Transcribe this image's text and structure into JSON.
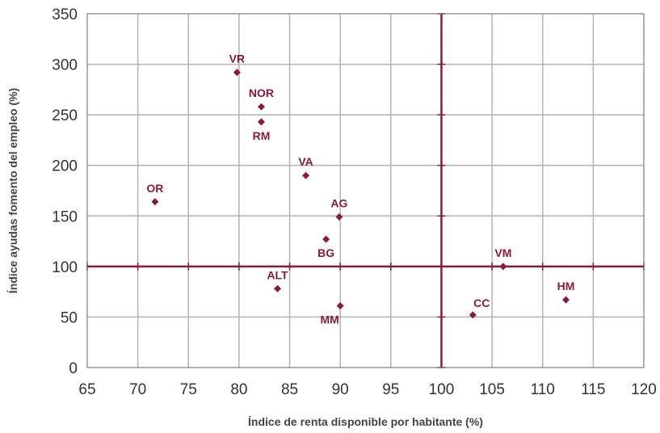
{
  "chart_data": {
    "type": "scatter",
    "xlabel": "Índice de renta disponible por habitante (%)",
    "ylabel": "Índice ayudas fomento del empleo (%)",
    "xlim": [
      65,
      120
    ],
    "ylim": [
      0,
      350
    ],
    "xticks": [
      65,
      70,
      75,
      80,
      85,
      90,
      95,
      100,
      105,
      110,
      115,
      120
    ],
    "yticks": [
      0,
      50,
      100,
      150,
      200,
      250,
      300,
      350
    ],
    "grid": true,
    "reference_lines": {
      "x": 100,
      "y": 100
    },
    "colors": {
      "marker": "#8b1a3a",
      "reference": "#8b1a3a",
      "grid": "#b3b3b3"
    },
    "points": [
      {
        "label": "VR",
        "x": 79.8,
        "y": 292,
        "label_pos": "above"
      },
      {
        "label": "NOR",
        "x": 82.2,
        "y": 258,
        "label_pos": "above"
      },
      {
        "label": "RM",
        "x": 82.2,
        "y": 243,
        "label_pos": "below"
      },
      {
        "label": "VA",
        "x": 86.6,
        "y": 190,
        "label_pos": "above"
      },
      {
        "label": "OR",
        "x": 71.7,
        "y": 164,
        "label_pos": "above"
      },
      {
        "label": "AG",
        "x": 89.9,
        "y": 149,
        "label_pos": "above"
      },
      {
        "label": "BG",
        "x": 88.6,
        "y": 127,
        "label_pos": "below"
      },
      {
        "label": "ALT",
        "x": 83.8,
        "y": 78,
        "label_pos": "above"
      },
      {
        "label": "MM",
        "x": 90.0,
        "y": 61,
        "label_pos": "below-left"
      },
      {
        "label": "VM",
        "x": 106.1,
        "y": 100,
        "label_pos": "above"
      },
      {
        "label": "HM",
        "x": 112.3,
        "y": 67,
        "label_pos": "above"
      },
      {
        "label": "CC",
        "x": 103.1,
        "y": 52,
        "label_pos": "above-right"
      }
    ]
  }
}
